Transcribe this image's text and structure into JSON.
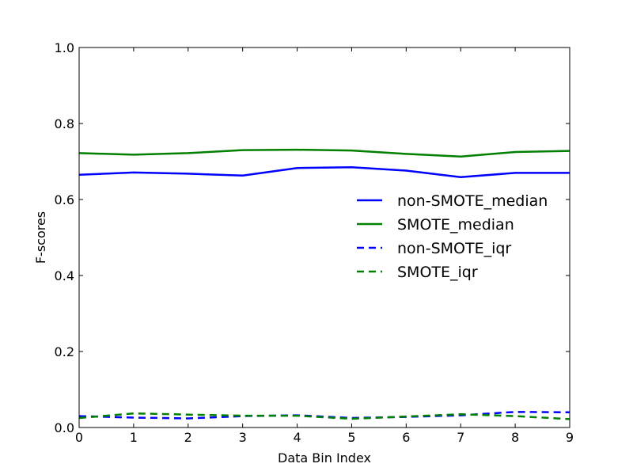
{
  "chart_data": {
    "type": "line",
    "title": "",
    "xlabel": "Data Bin Index",
    "ylabel": "F-scores",
    "xlim": [
      0,
      9
    ],
    "ylim": [
      0.0,
      1.0
    ],
    "x": [
      0,
      1,
      2,
      3,
      4,
      5,
      6,
      7,
      8,
      9
    ],
    "xticks": [
      "0",
      "1",
      "2",
      "3",
      "4",
      "5",
      "6",
      "7",
      "8",
      "9"
    ],
    "yticks": [
      0.0,
      0.2,
      0.4,
      0.6,
      0.8,
      1.0
    ],
    "ytick_labels": [
      "0.0",
      "0.2",
      "0.4",
      "0.6",
      "0.8",
      "1.0"
    ],
    "grid": false,
    "legend_position": "center-right",
    "series": [
      {
        "name": "non-SMOTE_median",
        "color": "#0000ff",
        "dash": "solid",
        "values": [
          0.665,
          0.671,
          0.668,
          0.663,
          0.683,
          0.685,
          0.676,
          0.659,
          0.67,
          0.67
        ]
      },
      {
        "name": "SMOTE_median",
        "color": "#008000",
        "dash": "solid",
        "values": [
          0.722,
          0.718,
          0.722,
          0.73,
          0.731,
          0.729,
          0.72,
          0.713,
          0.725,
          0.728
        ]
      },
      {
        "name": "non-SMOTE_iqr",
        "color": "#0000ff",
        "dash": "dashed",
        "values": [
          0.03,
          0.026,
          0.024,
          0.03,
          0.032,
          0.025,
          0.028,
          0.032,
          0.041,
          0.04
        ]
      },
      {
        "name": "SMOTE_iqr",
        "color": "#008000",
        "dash": "dashed",
        "values": [
          0.025,
          0.037,
          0.034,
          0.031,
          0.031,
          0.023,
          0.029,
          0.035,
          0.03,
          0.022
        ]
      }
    ]
  }
}
